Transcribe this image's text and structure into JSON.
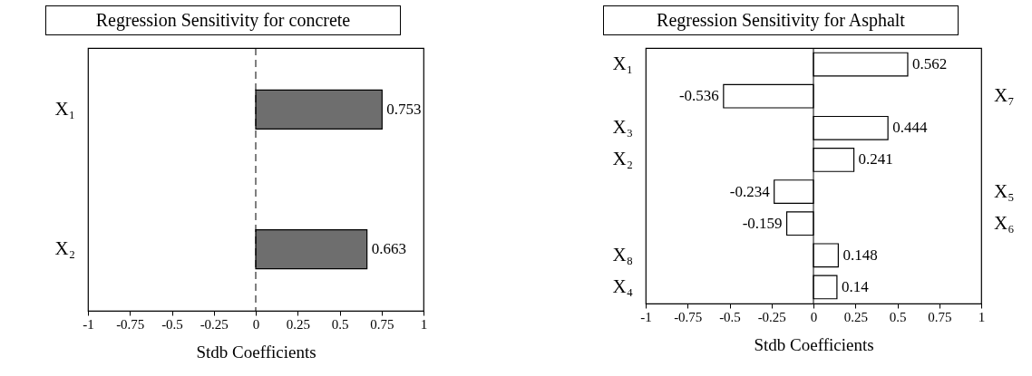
{
  "chart_data": [
    {
      "type": "bar",
      "orientation": "horizontal",
      "title": "Regression Sensitivity for concrete",
      "xlabel": "Stdb Coefficients",
      "categories": [
        "X₁",
        "X₂"
      ],
      "values": [
        0.753,
        0.663
      ],
      "color": "#6e6e6e",
      "xlim": [
        -1,
        1
      ],
      "xticks": [
        -1,
        -0.75,
        -0.5,
        -0.25,
        0,
        0.25,
        0.5,
        0.75,
        1
      ],
      "data_labels": true,
      "ref_lines": [
        {
          "axis": "x",
          "value": 0,
          "label": null,
          "line_style": "dashed"
        }
      ]
    },
    {
      "type": "bar",
      "orientation": "horizontal",
      "title": "Regression Sensitivity for Asphalt",
      "xlabel": "Stdb Coefficients",
      "categories": [
        "X₁",
        "X₇",
        "X₃",
        "X₂",
        "X₅",
        "X₆",
        "X₈",
        "X₄"
      ],
      "values": [
        0.562,
        -0.536,
        0.444,
        0.241,
        -0.234,
        -0.159,
        0.148,
        0.14
      ],
      "color": "#ffffff",
      "xlim": [
        -1,
        1
      ],
      "xticks": [
        -1,
        -0.75,
        -0.5,
        -0.25,
        0,
        0.25,
        0.5,
        0.75,
        1
      ],
      "data_labels": true,
      "ref_lines": [
        {
          "axis": "x",
          "value": 0,
          "label": null,
          "line_style": "solid"
        }
      ]
    }
  ]
}
